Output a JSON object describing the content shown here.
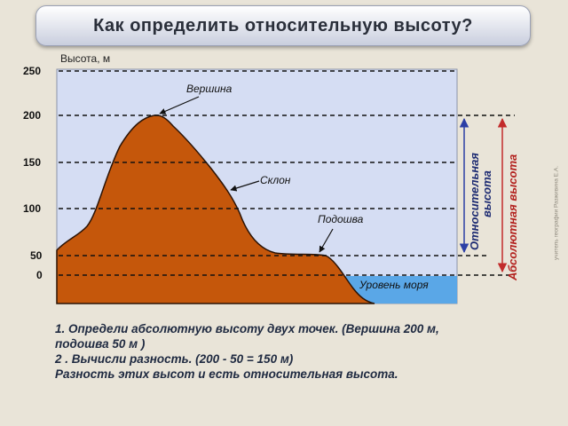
{
  "title": "Как определить относительную высоту?",
  "axis": {
    "ylabel": "Высота, м",
    "ticks": [
      "250",
      "200",
      "150",
      "100",
      "50",
      "0"
    ]
  },
  "labels": {
    "peak": "Вершина",
    "slope": "Склон",
    "foot": "Подошва",
    "sea_level": "Уровень моря",
    "relative_line1": "Относительная",
    "relative_line2": "высота",
    "absolute": "Абсолютная высота"
  },
  "tasks": {
    "line1": "1. Определи абсолютную высоту  двух точек. (Вершина 200 м,",
    "line2": "подошва 50 м )",
    "line3": "2 . Вычисли разность. (200 - 50 = 150 м)",
    "line4": " Разность этих высот  и есть относительная высота."
  },
  "credit": "учитель географии Разживина Е.А.",
  "colors": {
    "mountain": "#c5570b",
    "mountain_outline": "#2b1305",
    "sky": "#d5ddf3",
    "sea": "#5aa7e7",
    "relative_arrow": "#2c3fa6",
    "absolute_arrow": "#c22b2b"
  }
}
